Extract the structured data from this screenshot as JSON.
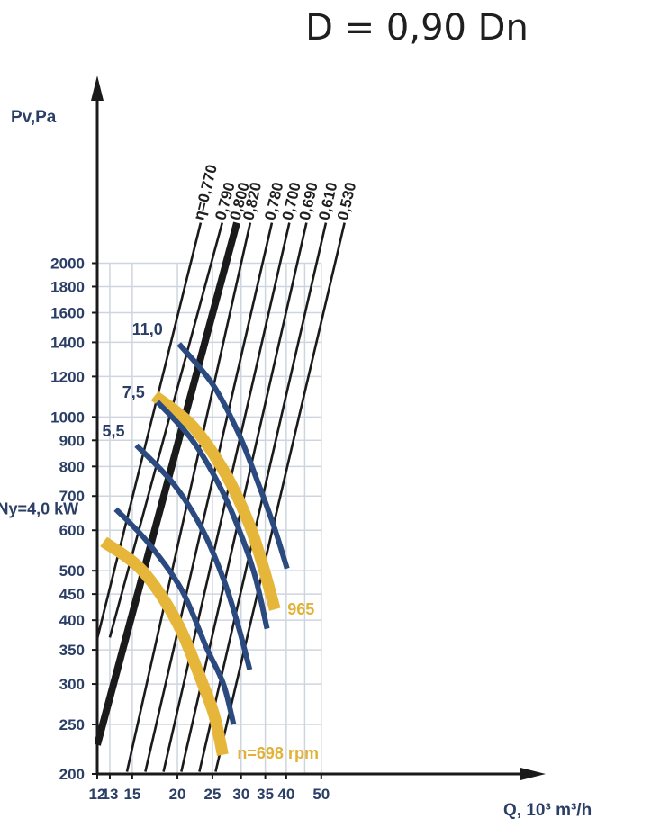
{
  "chart_data": {
    "type": "line",
    "title": "D = 0,90 Dn",
    "xlabel": "Q, 10³ m³/h",
    "ylabel": "Pv,Pa",
    "x_ticks": [
      "12",
      "13",
      "15",
      "20",
      "25",
      "30",
      "35",
      "40",
      "50"
    ],
    "y_ticks": [
      "200",
      "250",
      "300",
      "350",
      "400",
      "450",
      "500",
      "600",
      "700",
      "800",
      "900",
      "1000",
      "1200",
      "1400",
      "1600",
      "1800",
      "2000"
    ],
    "grid": true,
    "efficiency_lines": [
      {
        "label": "η=0,770",
        "x": [
          12,
          23.2
        ],
        "y": [
          368,
          2400
        ],
        "bold": false
      },
      {
        "label": "0,790",
        "x": [
          13,
          26.6
        ],
        "y": [
          370,
          2400
        ],
        "bold": false
      },
      {
        "label": "0,800",
        "x": [
          12,
          29.2
        ],
        "y": [
          228,
          2400
        ],
        "bold": true
      },
      {
        "label": "0,820",
        "x": [
          14.5,
          31.8
        ],
        "y": [
          202,
          2400
        ],
        "bold": false
      },
      {
        "label": "0,780",
        "x": [
          16.3,
          36.5
        ],
        "y": [
          202,
          2400
        ],
        "bold": false
      },
      {
        "label": "0,700",
        "x": [
          18.3,
          40.8
        ],
        "y": [
          202,
          2400
        ],
        "bold": false
      },
      {
        "label": "0,690",
        "x": [
          20.5,
          45.5
        ],
        "y": [
          202,
          2400
        ],
        "bold": false
      },
      {
        "label": "0,610",
        "x": [
          23,
          51.5
        ],
        "y": [
          202,
          2400
        ],
        "bold": false
      },
      {
        "label": "0,530",
        "x": [
          25.5,
          58
        ],
        "y": [
          202,
          2400
        ],
        "bold": false
      }
    ],
    "power_curves": [
      {
        "label": "Ny=4,0 kW",
        "points": [
          [
            13.5,
            660
          ],
          [
            16.5,
            570
          ],
          [
            20.5,
            460
          ],
          [
            24,
            355
          ],
          [
            26.8,
            300
          ],
          [
            28.6,
            250
          ]
        ]
      },
      {
        "label": "5,5",
        "points": [
          [
            15.4,
            880
          ],
          [
            19.5,
            740
          ],
          [
            23.5,
            600
          ],
          [
            27,
            475
          ],
          [
            29.6,
            385
          ],
          [
            31.7,
            320
          ]
        ]
      },
      {
        "label": "",
        "points": [
          [
            17.6,
            1070
          ],
          [
            22,
            900
          ],
          [
            26.5,
            720
          ],
          [
            30.5,
            570
          ],
          [
            33,
            480
          ],
          [
            35.4,
            385
          ]
        ]
      },
      {
        "label": "11,0",
        "points": [
          [
            20.2,
            1390
          ],
          [
            25,
            1160
          ],
          [
            29.5,
            930
          ],
          [
            33.5,
            740
          ],
          [
            37,
            610
          ],
          [
            40.2,
            505
          ]
        ]
      }
    ],
    "speed_curves": [
      {
        "label": "n=698 rpm",
        "points": [
          [
            12.5,
            570
          ],
          [
            16,
            500
          ],
          [
            20,
            395
          ],
          [
            23.5,
            300
          ],
          [
            25.3,
            260
          ],
          [
            26.7,
            218
          ]
        ]
      },
      {
        "label": "",
        "points": [
          [
            17.3,
            1100
          ],
          [
            22,
            960
          ],
          [
            27,
            780
          ],
          [
            31.5,
            620
          ],
          [
            34.5,
            510
          ],
          [
            37.2,
            420
          ]
        ]
      }
    ],
    "annotations": [
      "965",
      "7,5"
    ]
  }
}
